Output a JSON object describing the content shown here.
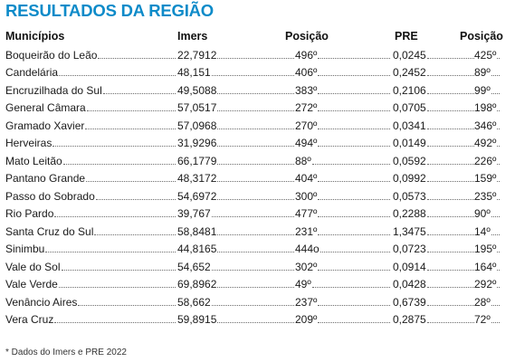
{
  "title": "RESULTADOS DA REGIÃO",
  "headers": {
    "municipios": "Municípios",
    "imers": "Imers",
    "posicao1": "Posição",
    "pre": "PRE",
    "posicao2": "Posição"
  },
  "rows": [
    {
      "municipio": "Boqueirão do Leão",
      "imers": "22,7912",
      "pos_imers": "496º",
      "pre": "0,0245",
      "pos_pre": "425º"
    },
    {
      "municipio": "Candelária",
      "imers": "48,151",
      "pos_imers": "406º",
      "pre": "0,2452",
      "pos_pre": "89º"
    },
    {
      "municipio": "Encruzilhada do Sul",
      "imers": "49,5088",
      "pos_imers": "383º",
      "pre": "0,2106",
      "pos_pre": "99º"
    },
    {
      "municipio": "General Câmara",
      "imers": "57,0517",
      "pos_imers": "272º",
      "pre": "0,0705",
      "pos_pre": "198º"
    },
    {
      "municipio": "Gramado Xavier",
      "imers": "57,0968",
      "pos_imers": "270º",
      "pre": "0,0341",
      "pos_pre": "346º"
    },
    {
      "municipio": "Herveiras",
      "imers": "31,9296",
      "pos_imers": "494º",
      "pre": "0,0149",
      "pos_pre": "492º"
    },
    {
      "municipio": "Mato Leitão",
      "imers": "66,1779",
      "pos_imers": "88º",
      "pre": "0,0592",
      "pos_pre": "226º"
    },
    {
      "municipio": "Pantano Grande",
      "imers": "48,3172",
      "pos_imers": "404º",
      "pre": "0,0992",
      "pos_pre": "159º"
    },
    {
      "municipio": "Passo do Sobrado",
      "imers": "54,6972",
      "pos_imers": "300º",
      "pre": "0,0573",
      "pos_pre": "235º"
    },
    {
      "municipio": "Rio Pardo",
      "imers": "39,767",
      "pos_imers": "477º",
      "pre": "0,2288",
      "pos_pre": "90º"
    },
    {
      "municipio": "Santa Cruz do Sul",
      "imers": "58,8481",
      "pos_imers": "231º",
      "pre": "1,3475",
      "pos_pre": "14º"
    },
    {
      "municipio": "Sinimbu",
      "imers": "44,8165",
      "pos_imers": "444o",
      "pre": "0,0723",
      "pos_pre": "195º"
    },
    {
      "municipio": "Vale do Sol",
      "imers": "54,652",
      "pos_imers": "302º",
      "pre": "0,0914",
      "pos_pre": "164º"
    },
    {
      "municipio": "Vale Verde",
      "imers": "69,8962",
      "pos_imers": "49º",
      "pre": "0,0428",
      "pos_pre": "292º"
    },
    {
      "municipio": "Venâncio Aires",
      "imers": "58,662",
      "pos_imers": "237º",
      "pre": "0,6739",
      "pos_pre": "28º"
    },
    {
      "municipio": "Vera Cruz",
      "imers": "59,8915",
      "pos_imers": "209º",
      "pre": "0,2875",
      "pos_pre": "72º"
    }
  ],
  "footnote": "* Dados do Imers e PRE 2022",
  "colors": {
    "title": "#0d8bc9",
    "text": "#1a1a1a",
    "leader_dots": "#6b6b6b"
  }
}
